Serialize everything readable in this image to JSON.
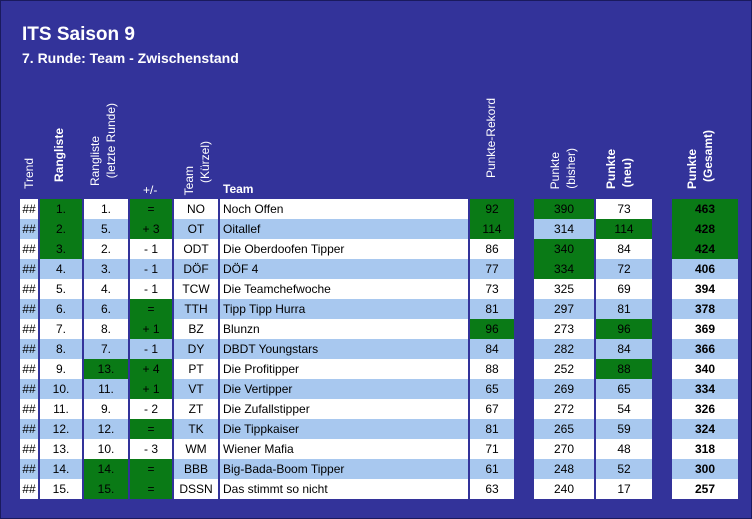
{
  "header": {
    "title": "ITS Saison 9",
    "subtitle": "7. Runde: Team - Zwischenstand"
  },
  "columns": {
    "trend": "Trend",
    "rangliste": "Rangliste",
    "rangliste_letzte_1": "Rangliste",
    "rangliste_letzte_2": "(letzte Runde)",
    "diff": "+/-",
    "team_kuerzel_1": "Team",
    "team_kuerzel_2": "(Kürzel)",
    "team": "Team",
    "rekord": "Punkte-Rekord",
    "bisher_1": "Punkte",
    "bisher_2": "(bisher)",
    "neu_1": "Punkte",
    "neu_2": "(neu)",
    "gesamt_1": "Punkte",
    "gesamt_2": "(Gesamt)"
  },
  "colors": {
    "background": "#33339a",
    "green": "#0a7a16",
    "light_blue": "#a8c8ef",
    "white": "#ffffff"
  },
  "rows": [
    {
      "trend": "##",
      "rank": "1.",
      "prev": "1.",
      "diff": "=",
      "abbr": "NO",
      "team": "Noch Offen",
      "rekord": "92",
      "bisher": "390",
      "neu": "73",
      "gesamt": "463"
    },
    {
      "trend": "##",
      "rank": "2.",
      "prev": "5.",
      "diff": "+ 3",
      "abbr": "OT",
      "team": "Oitallef",
      "rekord": "114",
      "bisher": "314",
      "neu": "114",
      "gesamt": "428"
    },
    {
      "trend": "##",
      "rank": "3.",
      "prev": "2.",
      "diff": "- 1",
      "abbr": "ODT",
      "team": "Die Oberdoofen Tipper",
      "rekord": "86",
      "bisher": "340",
      "neu": "84",
      "gesamt": "424"
    },
    {
      "trend": "##",
      "rank": "4.",
      "prev": "3.",
      "diff": "- 1",
      "abbr": "DÖF",
      "team": "DÖF 4",
      "rekord": "77",
      "bisher": "334",
      "neu": "72",
      "gesamt": "406"
    },
    {
      "trend": "##",
      "rank": "5.",
      "prev": "4.",
      "diff": "- 1",
      "abbr": "TCW",
      "team": "Die Teamchefwoche",
      "rekord": "73",
      "bisher": "325",
      "neu": "69",
      "gesamt": "394"
    },
    {
      "trend": "##",
      "rank": "6.",
      "prev": "6.",
      "diff": "=",
      "abbr": "TTH",
      "team": "Tipp Tipp Hurra",
      "rekord": "81",
      "bisher": "297",
      "neu": "81",
      "gesamt": "378"
    },
    {
      "trend": "##",
      "rank": "7.",
      "prev": "8.",
      "diff": "+ 1",
      "abbr": "BZ",
      "team": "Blunzn",
      "rekord": "96",
      "bisher": "273",
      "neu": "96",
      "gesamt": "369"
    },
    {
      "trend": "##",
      "rank": "8.",
      "prev": "7.",
      "diff": "- 1",
      "abbr": "DY",
      "team": "DBDT Youngstars",
      "rekord": "84",
      "bisher": "282",
      "neu": "84",
      "gesamt": "366"
    },
    {
      "trend": "##",
      "rank": "9.",
      "prev": "13.",
      "diff": "+ 4",
      "abbr": "PT",
      "team": "Die Profitipper",
      "rekord": "88",
      "bisher": "252",
      "neu": "88",
      "gesamt": "340"
    },
    {
      "trend": "##",
      "rank": "10.",
      "prev": "11.",
      "diff": "+ 1",
      "abbr": "VT",
      "team": "Die Vertipper",
      "rekord": "65",
      "bisher": "269",
      "neu": "65",
      "gesamt": "334"
    },
    {
      "trend": "##",
      "rank": "11.",
      "prev": "9.",
      "diff": "- 2",
      "abbr": "ZT",
      "team": "Die Zufallstipper",
      "rekord": "67",
      "bisher": "272",
      "neu": "54",
      "gesamt": "326"
    },
    {
      "trend": "##",
      "rank": "12.",
      "prev": "12.",
      "diff": "=",
      "abbr": "TK",
      "team": "Die Tippkaiser",
      "rekord": "81",
      "bisher": "265",
      "neu": "59",
      "gesamt": "324"
    },
    {
      "trend": "##",
      "rank": "13.",
      "prev": "10.",
      "diff": "- 3",
      "abbr": "WM",
      "team": "Wiener Mafia",
      "rekord": "71",
      "bisher": "270",
      "neu": "48",
      "gesamt": "318"
    },
    {
      "trend": "##",
      "rank": "14.",
      "prev": "14.",
      "diff": "=",
      "abbr": "BBB",
      "team": "Big-Bada-Boom Tipper",
      "rekord": "61",
      "bisher": "248",
      "neu": "52",
      "gesamt": "300"
    },
    {
      "trend": "##",
      "rank": "15.",
      "prev": "15.",
      "diff": "=",
      "abbr": "DSSN",
      "team": "Das stimmt so nicht",
      "rekord": "63",
      "bisher": "240",
      "neu": "17",
      "gesamt": "257"
    }
  ],
  "highlights": {
    "rank_green": [
      0,
      1,
      2
    ],
    "prev_green": [
      8,
      13,
      14
    ],
    "diff_green": [
      0,
      1,
      5,
      6,
      8,
      9,
      11,
      13,
      14
    ],
    "rekord_green": [
      0,
      1,
      6
    ],
    "bisher_green": [
      0,
      2,
      3
    ],
    "neu_green": [
      1,
      6,
      8
    ],
    "gesamt_green": [
      0,
      1,
      2
    ]
  }
}
